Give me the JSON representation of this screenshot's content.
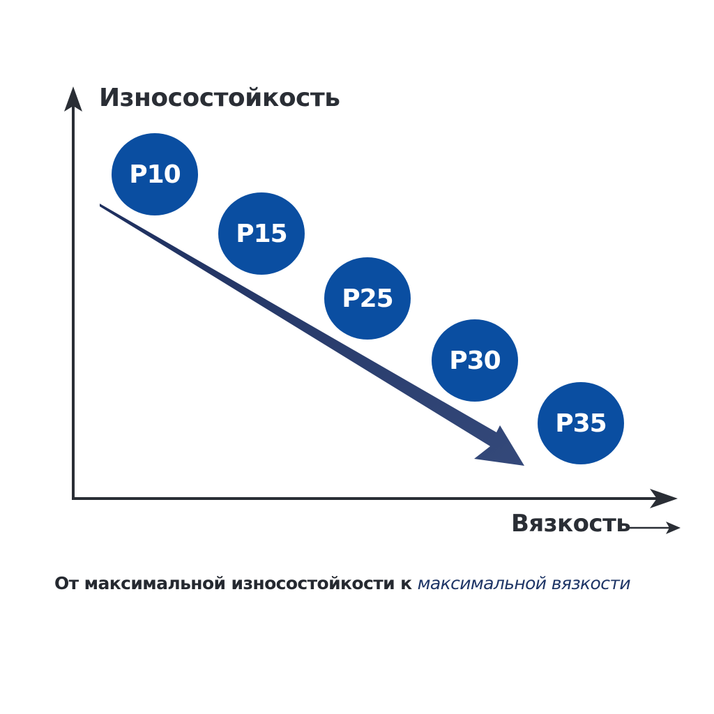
{
  "y_axis_label": "Износостойкость",
  "x_axis_label": "Вязкость",
  "grades": [
    "P10",
    "P15",
    "P25",
    "P30",
    "P35"
  ],
  "caption": {
    "prefix": "От максимальной износостойкости к ",
    "emphasis": "максимальной вязкости"
  },
  "colors": {
    "grade_fill": "#0a4ea1",
    "trend_arrow": "#2d4373",
    "axis": "#2a2e35"
  }
}
